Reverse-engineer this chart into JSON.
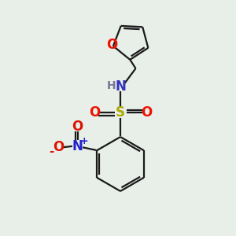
{
  "background_color": "#e8eee8",
  "figsize": [
    3.0,
    3.0
  ],
  "dpi": 100,
  "bond_color": "#1a1a1a",
  "bond_width": 1.6,
  "furan_O_color": "#ee1100",
  "N_color": "#3333bb",
  "H_color": "#777799",
  "S_color": "#aaaa00",
  "SO_color": "#ee1100",
  "nitro_N_color": "#2222cc",
  "nitro_O_color": "#dd1100",
  "plus_color": "#2222cc",
  "minus_color": "#dd1100",
  "xlim": [
    0,
    10
  ],
  "ylim": [
    0,
    10
  ]
}
